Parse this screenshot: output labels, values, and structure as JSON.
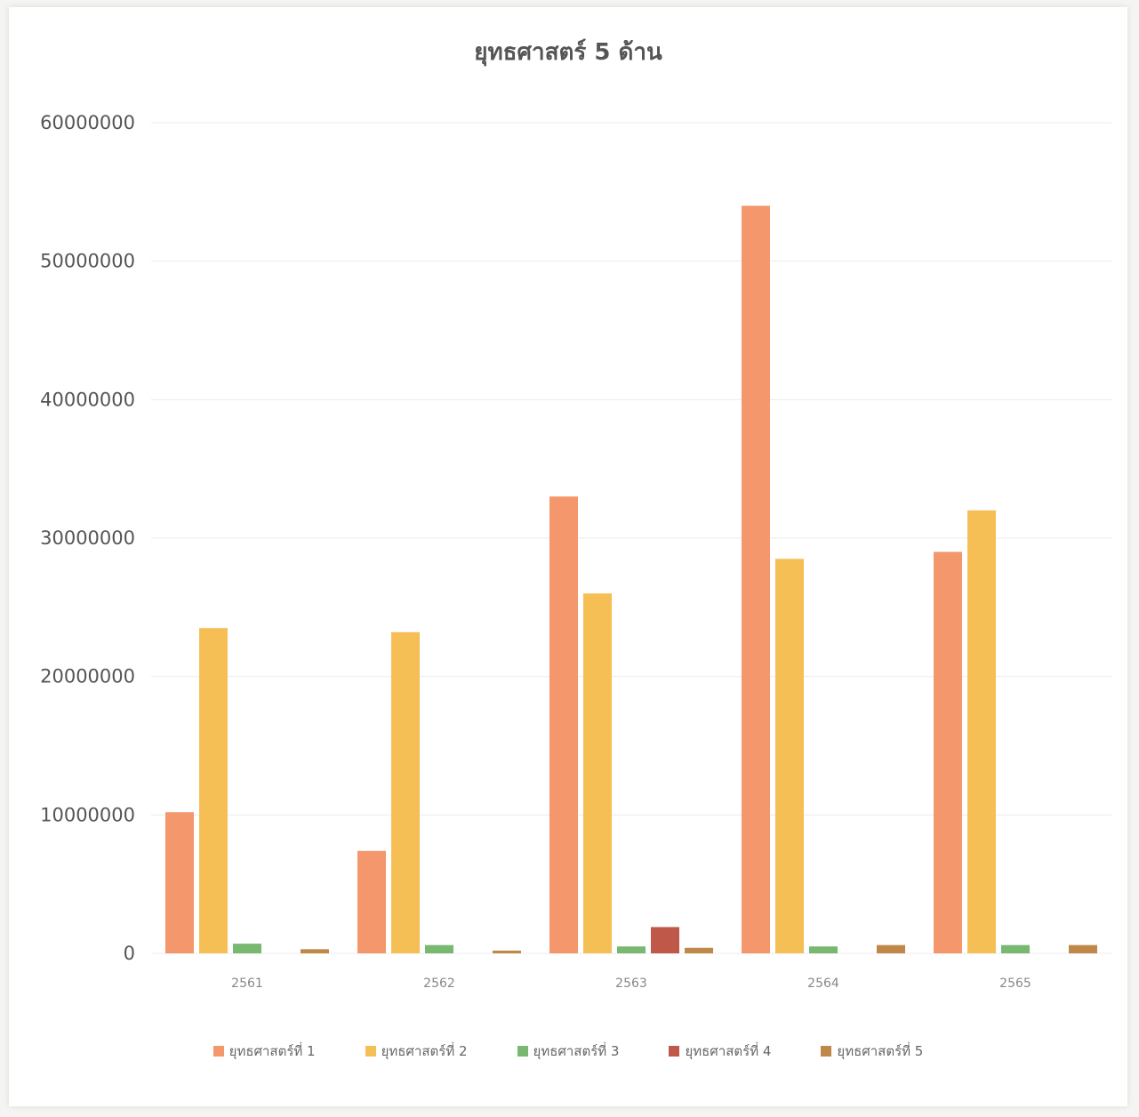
{
  "chart_data": {
    "type": "bar",
    "title": "ยุทธศาสตร์ 5 ด้าน",
    "xlabel": "",
    "ylabel": "",
    "categories": [
      "2561",
      "2562",
      "2563",
      "2564",
      "2565"
    ],
    "ylim": [
      0,
      60000000
    ],
    "yticks": [
      "0",
      "10000000",
      "20000000",
      "30000000",
      "40000000",
      "50000000",
      "60000000"
    ],
    "grid": true,
    "legend_position": "bottom",
    "series": [
      {
        "name": "ยุทธศาสตร์ที่ 1",
        "color": "#f4976c",
        "values": [
          10200000,
          7400000,
          33000000,
          54000000,
          29000000
        ]
      },
      {
        "name": "ยุทธศาสตร์ที่ 2",
        "color": "#f6bf56",
        "values": [
          23500000,
          23200000,
          26000000,
          28500000,
          32000000
        ]
      },
      {
        "name": "ยุทธศาสตร์ที่ 3",
        "color": "#78b870",
        "values": [
          700000,
          600000,
          500000,
          500000,
          600000
        ]
      },
      {
        "name": "ยุทธศาสตร์ที่ 4",
        "color": "#c0584a",
        "values": [
          0,
          0,
          1900000,
          0,
          0
        ]
      },
      {
        "name": "ยุทธศาสตร์ที่ 5",
        "color": "#c08848",
        "values": [
          300000,
          200000,
          400000,
          600000,
          600000
        ]
      }
    ]
  }
}
